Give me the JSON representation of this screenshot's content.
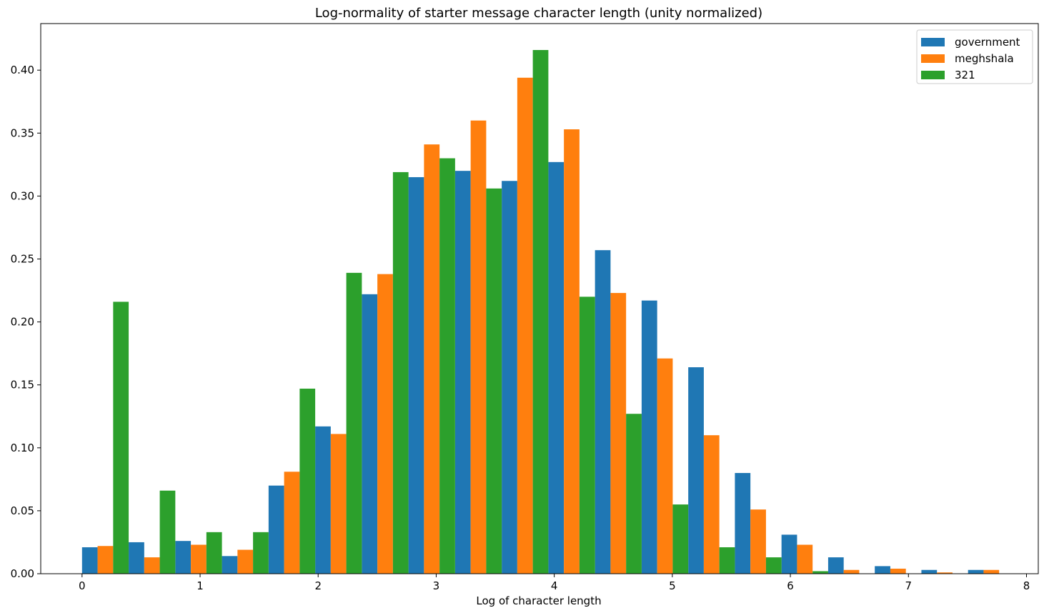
{
  "chart_data": {
    "type": "bar",
    "title": "Log-normality of starter message character length (unity normalized)",
    "xlabel": "Log of character length",
    "ylabel": "",
    "xlim": [
      -0.35,
      8.1
    ],
    "ylim": [
      0,
      0.437
    ],
    "xticks": [
      0,
      1,
      2,
      3,
      4,
      5,
      6,
      7,
      8
    ],
    "yticks": [
      0.0,
      0.05,
      0.1,
      0.15,
      0.2,
      0.25,
      0.3,
      0.35,
      0.4
    ],
    "ytick_labels": [
      "0.00",
      "0.05",
      "0.10",
      "0.15",
      "0.20",
      "0.25",
      "0.30",
      "0.35",
      "0.40"
    ],
    "bin_start": 0,
    "bin_width": 0.395,
    "legend_position": "top-right",
    "series": [
      {
        "name": "government",
        "color": "#1f77b4",
        "values": [
          0.021,
          0.025,
          0.026,
          0.014,
          0.07,
          0.117,
          0.222,
          0.315,
          0.32,
          0.312,
          0.327,
          0.257,
          0.217,
          0.164,
          0.08,
          0.031,
          0.013,
          0.006,
          0.003,
          0.003
        ]
      },
      {
        "name": "meghshala",
        "color": "#ff7f0e",
        "values": [
          0.022,
          0.013,
          0.023,
          0.019,
          0.081,
          0.111,
          0.238,
          0.341,
          0.36,
          0.394,
          0.353,
          0.223,
          0.171,
          0.11,
          0.051,
          0.023,
          0.003,
          0.004,
          0.001,
          0.003
        ]
      },
      {
        "name": "321",
        "color": "#2ca02c",
        "values": [
          0.216,
          0.066,
          0.033,
          0.033,
          0.147,
          0.239,
          0.319,
          0.33,
          0.306,
          0.416,
          0.22,
          0.127,
          0.055,
          0.021,
          0.013,
          0.002,
          0,
          0,
          0,
          0
        ]
      }
    ]
  }
}
